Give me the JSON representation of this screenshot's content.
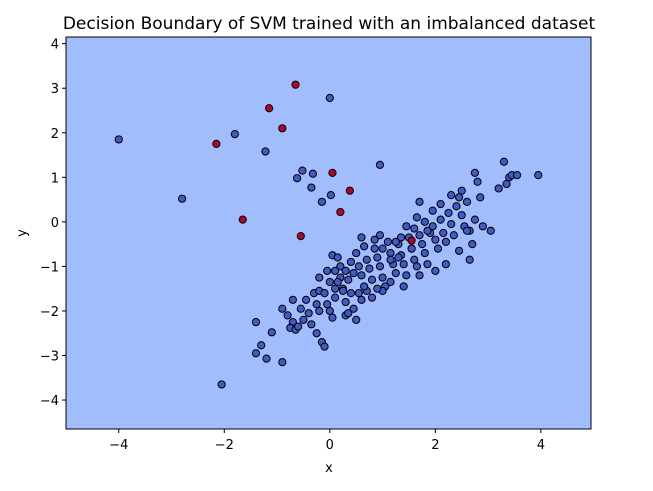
{
  "chart_data": {
    "type": "scatter",
    "title": "Decision Boundary of SVM trained with an imbalanced dataset",
    "xlabel": "x",
    "ylabel": "y",
    "xlim": [
      -5.0,
      4.95
    ],
    "ylim": [
      -4.65,
      4.15
    ],
    "xticks": [
      -4,
      -2,
      0,
      2,
      4
    ],
    "yticks": [
      -4,
      -3,
      -2,
      -1,
      0,
      1,
      2,
      3,
      4
    ],
    "grid": false,
    "decision_region": {
      "predicted_class": "majority",
      "color": "#a2bdfc"
    },
    "colors": {
      "majority": "#4459c8",
      "minority": "#b40426",
      "edge": "#000000",
      "background": "#a2bdfc"
    },
    "series": [
      {
        "class": "majority",
        "points": [
          [
            -4.0,
            1.85
          ],
          [
            -2.8,
            0.52
          ],
          [
            -1.8,
            1.97
          ],
          [
            -1.22,
            1.58
          ],
          [
            -2.05,
            -3.65
          ],
          [
            -0.52,
            1.15
          ],
          [
            -0.62,
            0.98
          ],
          [
            -0.32,
            1.08
          ],
          [
            -0.35,
            0.77
          ],
          [
            -0.15,
            0.45
          ],
          [
            0.0,
            2.78
          ],
          [
            0.02,
            0.6
          ],
          [
            0.95,
            1.28
          ],
          [
            -1.4,
            -2.25
          ],
          [
            -1.1,
            -2.48
          ],
          [
            -1.3,
            -2.77
          ],
          [
            -1.4,
            -2.95
          ],
          [
            -1.2,
            -3.07
          ],
          [
            -0.9,
            -3.15
          ],
          [
            -0.9,
            -1.95
          ],
          [
            -0.8,
            -2.1
          ],
          [
            -0.7,
            -2.25
          ],
          [
            -0.75,
            -2.38
          ],
          [
            -0.65,
            -2.42
          ],
          [
            -0.6,
            -2.35
          ],
          [
            -0.5,
            -2.2
          ],
          [
            -0.4,
            -2.05
          ],
          [
            -0.35,
            -2.3
          ],
          [
            -0.25,
            -2.5
          ],
          [
            -0.15,
            -2.7
          ],
          [
            -0.1,
            -2.8
          ],
          [
            -0.7,
            -1.75
          ],
          [
            -0.55,
            -1.95
          ],
          [
            -0.45,
            -1.75
          ],
          [
            -0.3,
            -1.6
          ],
          [
            -0.25,
            -1.85
          ],
          [
            -0.2,
            -2.0
          ],
          [
            -0.2,
            -1.55
          ],
          [
            -0.1,
            -1.6
          ],
          [
            -0.05,
            -1.85
          ],
          [
            0.0,
            -2.0
          ],
          [
            0.05,
            -2.15
          ],
          [
            0.1,
            -1.7
          ],
          [
            0.0,
            -1.35
          ],
          [
            0.1,
            -1.5
          ],
          [
            0.2,
            -1.25
          ],
          [
            0.25,
            -1.5
          ],
          [
            0.3,
            -1.8
          ],
          [
            0.3,
            -2.1
          ],
          [
            0.35,
            -2.05
          ],
          [
            0.45,
            -1.95
          ],
          [
            0.5,
            -2.2
          ],
          [
            0.55,
            -1.6
          ],
          [
            0.6,
            -1.75
          ],
          [
            0.7,
            -1.55
          ],
          [
            -0.2,
            -1.25
          ],
          [
            0.05,
            -0.75
          ],
          [
            0.15,
            -0.8
          ],
          [
            0.2,
            -1.0
          ],
          [
            0.3,
            -1.1
          ],
          [
            0.35,
            -1.3
          ],
          [
            0.4,
            -0.9
          ],
          [
            0.45,
            -1.15
          ],
          [
            0.5,
            -0.7
          ],
          [
            0.55,
            -1.0
          ],
          [
            0.6,
            -1.2
          ],
          [
            0.65,
            -0.55
          ],
          [
            0.7,
            -0.85
          ],
          [
            0.75,
            -1.05
          ],
          [
            0.8,
            -1.3
          ],
          [
            0.85,
            -0.6
          ],
          [
            0.9,
            -0.8
          ],
          [
            0.95,
            -1.0
          ],
          [
            1.0,
            -1.25
          ],
          [
            1.05,
            -1.45
          ],
          [
            1.1,
            -0.45
          ],
          [
            1.15,
            -0.7
          ],
          [
            1.2,
            -0.95
          ],
          [
            1.25,
            -1.15
          ],
          [
            1.3,
            -0.5
          ],
          [
            1.35,
            -0.75
          ],
          [
            1.4,
            -0.95
          ],
          [
            1.45,
            -1.2
          ],
          [
            1.5,
            -0.35
          ],
          [
            1.55,
            -0.6
          ],
          [
            1.6,
            -0.85
          ],
          [
            1.65,
            -1.0
          ],
          [
            1.7,
            -0.3
          ],
          [
            1.75,
            -0.5
          ],
          [
            1.8,
            -0.7
          ],
          [
            1.85,
            -0.95
          ],
          [
            1.9,
            -0.25
          ],
          [
            1.95,
            -0.1
          ],
          [
            2.0,
            -0.4
          ],
          [
            2.05,
            -0.6
          ],
          [
            2.1,
            0.05
          ],
          [
            2.15,
            -0.25
          ],
          [
            2.2,
            -0.45
          ],
          [
            2.25,
            0.2
          ],
          [
            2.3,
            -0.05
          ],
          [
            2.35,
            -0.3
          ],
          [
            2.4,
            0.35
          ],
          [
            2.45,
            0.55
          ],
          [
            2.5,
            0.15
          ],
          [
            2.55,
            -0.1
          ],
          [
            2.6,
            0.45
          ],
          [
            2.65,
            -0.2
          ],
          [
            2.7,
            -0.5
          ],
          [
            2.75,
            0.05
          ],
          [
            2.8,
            0.9
          ],
          [
            2.85,
            0.55
          ],
          [
            2.9,
            -0.1
          ],
          [
            3.05,
            -0.2
          ],
          [
            3.2,
            0.75
          ],
          [
            3.35,
            0.85
          ],
          [
            3.4,
            1.0
          ],
          [
            3.45,
            1.05
          ],
          [
            3.55,
            1.05
          ],
          [
            3.3,
            1.35
          ],
          [
            3.95,
            1.05
          ],
          [
            2.75,
            1.1
          ],
          [
            2.65,
            -0.85
          ],
          [
            2.6,
            -0.2
          ],
          [
            2.5,
            0.7
          ],
          [
            2.3,
            0.6
          ],
          [
            2.1,
            0.4
          ],
          [
            1.95,
            0.25
          ],
          [
            1.8,
            0.0
          ],
          [
            1.65,
            0.1
          ],
          [
            1.6,
            -0.15
          ],
          [
            1.45,
            -0.1
          ],
          [
            1.35,
            -0.35
          ],
          [
            1.25,
            -0.45
          ],
          [
            1.15,
            -1.35
          ],
          [
            1.0,
            -1.55
          ],
          [
            0.9,
            -1.5
          ],
          [
            0.8,
            -1.7
          ],
          [
            0.65,
            -1.45
          ],
          [
            0.4,
            -1.6
          ],
          [
            0.25,
            -1.55
          ],
          [
            0.15,
            -1.35
          ],
          [
            0.1,
            -1.1
          ],
          [
            -0.05,
            -1.1
          ],
          [
            1.4,
            -1.45
          ],
          [
            1.7,
            -1.2
          ],
          [
            2.0,
            -1.1
          ],
          [
            2.2,
            -0.95
          ],
          [
            2.45,
            -0.65
          ],
          [
            1.85,
            -0.2
          ],
          [
            1.7,
            0.45
          ],
          [
            1.55,
            -0.6
          ],
          [
            1.0,
            -0.6
          ],
          [
            1.15,
            -0.85
          ],
          [
            0.85,
            -0.4
          ],
          [
            0.6,
            -0.35
          ],
          [
            0.95,
            -0.3
          ],
          [
            1.3,
            -0.8
          ]
        ]
      },
      {
        "class": "minority",
        "points": [
          [
            -0.65,
            3.08
          ],
          [
            -1.15,
            2.55
          ],
          [
            -0.9,
            2.1
          ],
          [
            -2.15,
            1.75
          ],
          [
            0.05,
            1.1
          ],
          [
            0.38,
            0.7
          ],
          [
            0.2,
            0.22
          ],
          [
            -1.65,
            0.05
          ],
          [
            -0.55,
            -0.32
          ],
          [
            1.55,
            -0.42
          ]
        ]
      }
    ]
  }
}
